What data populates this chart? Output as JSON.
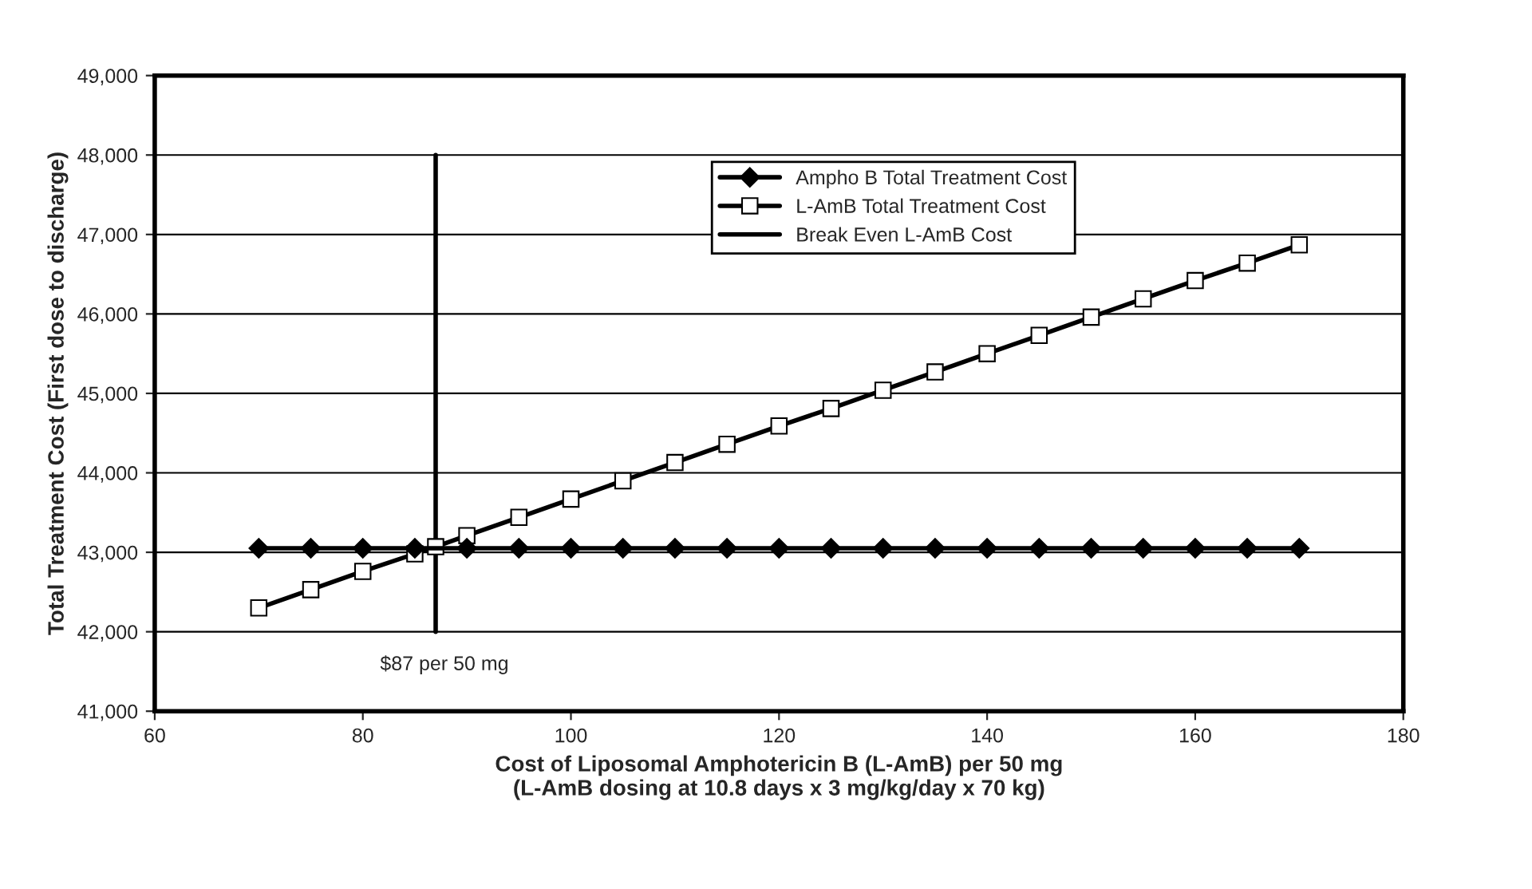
{
  "chart_data": {
    "type": "line",
    "xlabel": "Cost of Liposomal Amphotericin B (L-AmB) per 50 mg\n(L-AmB dosing at 10.8 days x 3 mg/kg/day x 70 kg)",
    "ylabel": "Total Treatment Cost (First dose to discharge)",
    "series": [
      {
        "name": "Ampho B Total Treatment Cost",
        "color": "#000000",
        "marker": "diamond",
        "x": [
          70,
          75,
          80,
          85,
          90,
          95,
          100,
          105,
          110,
          115,
          120,
          125,
          130,
          135,
          140,
          145,
          150,
          155,
          160,
          165,
          170
        ],
        "values": [
          43050,
          43050,
          43050,
          43050,
          43050,
          43050,
          43050,
          43050,
          43050,
          43050,
          43050,
          43050,
          43050,
          43050,
          43050,
          43050,
          43050,
          43050,
          43050,
          43050,
          43050
        ]
      },
      {
        "name": "L-AmB Total Treatment Cost",
        "color": "#000000",
        "marker": "square",
        "x": [
          70,
          75,
          80,
          85,
          87,
          90,
          95,
          100,
          105,
          110,
          115,
          120,
          125,
          130,
          135,
          140,
          145,
          150,
          155,
          160,
          165,
          170
        ],
        "values": [
          42300,
          42530,
          42760,
          42980,
          43070,
          43210,
          43440,
          43670,
          43900,
          44130,
          44360,
          44590,
          44810,
          45040,
          45270,
          45500,
          45730,
          45960,
          46190,
          46420,
          46640,
          46870
        ]
      },
      {
        "name": "Break Even L-AmB Cost",
        "color": "#000000",
        "marker": "none",
        "x": [
          87,
          87
        ],
        "values": [
          42000,
          48000
        ]
      }
    ],
    "xlim": [
      60,
      180
    ],
    "xticks": [
      60,
      80,
      100,
      120,
      140,
      160,
      180
    ],
    "ylim": [
      41000,
      49000
    ],
    "yticks": [
      {
        "value": 41000,
        "label": "41,000"
      },
      {
        "value": 42000,
        "label": "42,000"
      },
      {
        "value": 43000,
        "label": "43,000"
      },
      {
        "value": 44000,
        "label": "44,000"
      },
      {
        "value": 45000,
        "label": "45,000"
      },
      {
        "value": 46000,
        "label": "46,000"
      },
      {
        "value": 47000,
        "label": "47,000"
      },
      {
        "value": 48000,
        "label": "48,000"
      },
      {
        "value": 49000,
        "label": "49,000"
      }
    ],
    "grid": "y",
    "legend": "top right",
    "annotations": [
      "$87 per 50 mg"
    ]
  }
}
